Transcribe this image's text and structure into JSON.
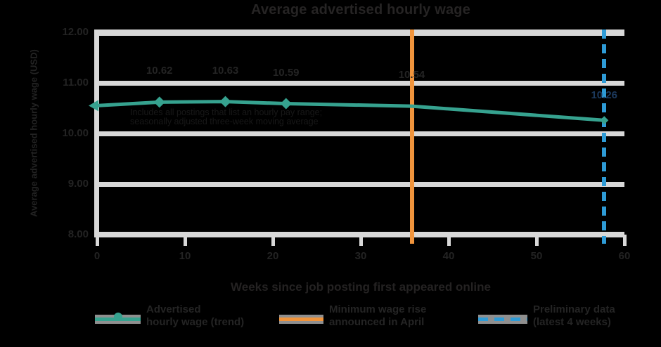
{
  "chart": {
    "title": "Average advertised hourly wage",
    "x_axis_title": "Weeks since job posting first appeared online",
    "y_axis_title": "Average advertised hourly wage (USD)",
    "annotation_line1": "Includes all postings that list an hourly pay range;",
    "annotation_line2": "seasonally adjusted three-week moving average",
    "colors": {
      "background": "#000000",
      "gridline": "#d8d8d8",
      "teal_series": "#36a28f",
      "orange_vline": "#f0943c",
      "blue_vline": "#2e9bd6",
      "text_dark": "#242424",
      "navy_label": "#1c3a5e",
      "legend_strip_gray": "#8f8f8f"
    }
  },
  "chart_data": {
    "type": "line",
    "title": "Average advertised hourly wage",
    "xlabel": "Weeks since job posting first appeared online",
    "ylabel": "Average advertised hourly wage (USD)",
    "xlim": [
      0,
      60
    ],
    "ylim": [
      8,
      12
    ],
    "grid": true,
    "legend_position": "bottom",
    "x_ticks": [
      "0",
      "10",
      "20",
      "30",
      "40",
      "50",
      "60"
    ],
    "y_ticks": [
      "12.00",
      "11.00",
      "10.00",
      "9.00",
      "8.00"
    ],
    "series": [
      {
        "name": "Advertised hourly wage (trend)",
        "color": "#36a28f",
        "x": [
          0,
          7.1,
          14.6,
          21.5,
          35.8,
          57.7
        ],
        "y": [
          10.55,
          10.62,
          10.63,
          10.59,
          10.54,
          10.26
        ],
        "point_labels": [
          "",
          "10.62",
          "10.63",
          "10.59",
          "10.54",
          "10.26"
        ],
        "label_colors": [
          "",
          "#242424",
          "#242424",
          "#242424",
          "#242424",
          "#1c3a5e"
        ]
      }
    ],
    "vlines": [
      {
        "x": 35.8,
        "color": "#f0943c",
        "style": "solid",
        "name": "Minimum wage rise"
      },
      {
        "x": 57.7,
        "color": "#2e9bd6",
        "style": "dashed",
        "name": "Preliminary data"
      }
    ]
  },
  "legend": {
    "items": [
      {
        "line1": "Advertised",
        "line2": "hourly wage (trend)",
        "marker": "line-dot",
        "color": "#36a28f"
      },
      {
        "line1": "Minimum wage rise",
        "line2": "announced in April",
        "marker": "line",
        "color": "#f0943c"
      },
      {
        "line1": "Preliminary data",
        "line2": "(latest 4 weeks)",
        "marker": "dashed",
        "color": "#2e9bd6"
      }
    ]
  }
}
